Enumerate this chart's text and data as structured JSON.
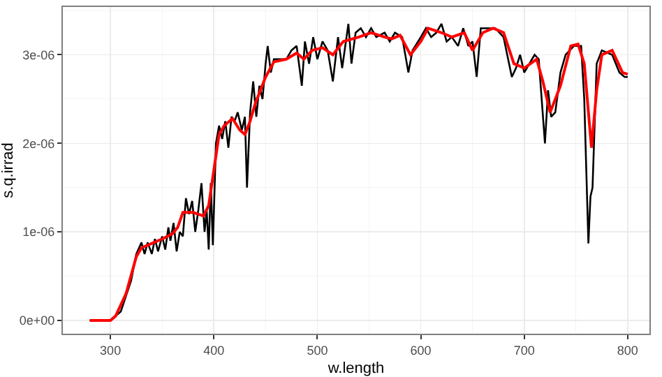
{
  "chart_data": {
    "type": "line",
    "xlabel": "w.length",
    "ylabel": "s.q.irrad",
    "xlim": [
      254,
      821
    ],
    "ylim": [
      -1.5e-07,
      3.54e-06
    ],
    "xticks": [
      300,
      400,
      500,
      600,
      700,
      800
    ],
    "yticks": [
      {
        "value": 0,
        "label": "0e+00"
      },
      {
        "value": 1e-06,
        "label": "1e-06"
      },
      {
        "value": 2e-06,
        "label": "2e-06"
      },
      {
        "value": 3e-06,
        "label": "3e-06"
      }
    ],
    "grid": true,
    "marker": "none",
    "line_style": "solid",
    "series": [
      {
        "color": "#000000",
        "x": [
          280,
          300,
          310,
          320,
          325,
          330,
          333,
          336,
          340,
          343,
          346,
          350,
          353,
          356,
          358,
          361,
          364,
          367,
          370,
          373,
          376,
          379,
          382,
          385,
          388,
          391,
          393,
          395,
          397,
          399,
          402,
          405,
          408,
          411,
          414,
          417,
          420,
          423,
          427,
          430,
          432,
          435,
          438,
          441,
          444,
          447,
          450,
          452,
          455,
          458,
          463,
          470,
          475,
          480,
          485,
          488,
          492,
          496,
          500,
          505,
          510,
          515,
          520,
          524,
          530,
          533,
          537,
          542,
          547,
          552,
          557,
          565,
          570,
          575,
          582,
          588,
          592,
          600,
          605,
          610,
          615,
          620,
          625,
          630,
          636,
          641,
          646,
          650,
          654,
          658,
          665,
          672,
          680,
          688,
          692,
          696,
          700,
          705,
          710,
          714,
          720,
          723,
          726,
          730,
          735,
          740,
          748,
          755,
          758,
          762,
          764,
          766,
          770,
          775,
          785,
          792,
          797,
          800
        ],
        "values": [
          0,
          0,
          1e-07,
          4.5e-07,
          7.5e-07,
          8.8e-07,
          7.5e-07,
          8.8e-07,
          7.5e-07,
          9.2e-07,
          7.8e-07,
          9.5e-07,
          8e-07,
          1.05e-06,
          9e-07,
          1.1e-06,
          7.8e-07,
          1e-06,
          9.5e-07,
          1.38e-06,
          1.2e-06,
          1.35e-06,
          1e-06,
          1.25e-06,
          1.55e-06,
          1e-06,
          1.25e-06,
          8e-07,
          1.55e-06,
          8.5e-07,
          2e-06,
          2.2e-06,
          2.05e-06,
          2.25e-06,
          1.95e-06,
          2.3e-06,
          2.25e-06,
          2.35e-06,
          2.15e-06,
          2.3e-06,
          1.5e-06,
          2.35e-06,
          2.7e-06,
          2.3e-06,
          2.65e-06,
          2.5e-06,
          2.9e-06,
          3.1e-06,
          2.8e-06,
          2.95e-06,
          2.95e-06,
          2.95e-06,
          3.05e-06,
          3.1e-06,
          2.65e-06,
          3.15e-06,
          2.9e-06,
          3.2e-06,
          2.95e-06,
          3.15e-06,
          3.05e-06,
          2.7e-06,
          3.2e-06,
          2.85e-06,
          3.35e-06,
          2.9e-06,
          3.25e-06,
          3.3e-06,
          3.2e-06,
          3.3e-06,
          3.2e-06,
          3.25e-06,
          3.15e-06,
          3.25e-06,
          3.2e-06,
          2.8e-06,
          3.05e-06,
          3.2e-06,
          3.3e-06,
          3.2e-06,
          3.25e-06,
          3.35e-06,
          3.15e-06,
          3.2e-06,
          3.1e-06,
          3.3e-06,
          3.1e-06,
          3.15e-06,
          2.75e-06,
          3.3e-06,
          3.3e-06,
          3.3e-06,
          3.2e-06,
          2.75e-06,
          2.85e-06,
          3e-06,
          2.8e-06,
          2.9e-06,
          3e-06,
          2.95e-06,
          2e-06,
          2.6e-06,
          2.3e-06,
          2.35e-06,
          2.8e-06,
          3e-06,
          3.1e-06,
          3.1e-06,
          2.5e-06,
          8.7e-07,
          1.4e-06,
          1.5e-06,
          2.9e-06,
          3.05e-06,
          3e-06,
          2.8e-06,
          2.75e-06,
          2.75e-06
        ]
      },
      {
        "color": "#ff0000",
        "x": [
          280,
          300,
          305,
          315,
          325,
          330,
          340,
          350,
          360,
          365,
          370,
          380,
          390,
          395,
          400,
          405,
          410,
          418,
          425,
          430,
          435,
          440,
          450,
          458,
          470,
          480,
          487,
          495,
          505,
          515,
          525,
          540,
          552,
          565,
          572,
          580,
          590,
          600,
          607,
          620,
          630,
          642,
          650,
          660,
          670,
          680,
          690,
          700,
          712,
          718,
          725,
          735,
          745,
          752,
          758,
          765,
          770,
          775,
          785,
          795,
          800
        ],
        "values": [
          0,
          0,
          5e-08,
          3e-07,
          7.2e-07,
          8.2e-07,
          8.7e-07,
          9.2e-07,
          9.8e-07,
          1.05e-06,
          1.22e-06,
          1.22e-06,
          1.18e-06,
          1.3e-06,
          1.7e-06,
          2.1e-06,
          2.2e-06,
          2.28e-06,
          2.15e-06,
          2.1e-06,
          2.25e-06,
          2.45e-06,
          2.75e-06,
          2.92e-06,
          2.95e-06,
          3.02e-06,
          2.95e-06,
          3.05e-06,
          3.08e-06,
          3e-06,
          3.15e-06,
          3.2e-06,
          3.25e-06,
          3.2e-06,
          3.18e-06,
          3.22e-06,
          3e-06,
          3.15e-06,
          3.3e-06,
          3.25e-06,
          3.2e-06,
          3.25e-06,
          3.05e-06,
          3.25e-06,
          3.3e-06,
          3.25e-06,
          2.9e-06,
          2.85e-06,
          2.95e-06,
          2.7e-06,
          2.35e-06,
          2.65e-06,
          3.1e-06,
          3.12e-06,
          2.9e-06,
          1.95e-06,
          2.6e-06,
          3e-06,
          3.05e-06,
          2.8e-06,
          2.78e-06
        ]
      }
    ]
  }
}
